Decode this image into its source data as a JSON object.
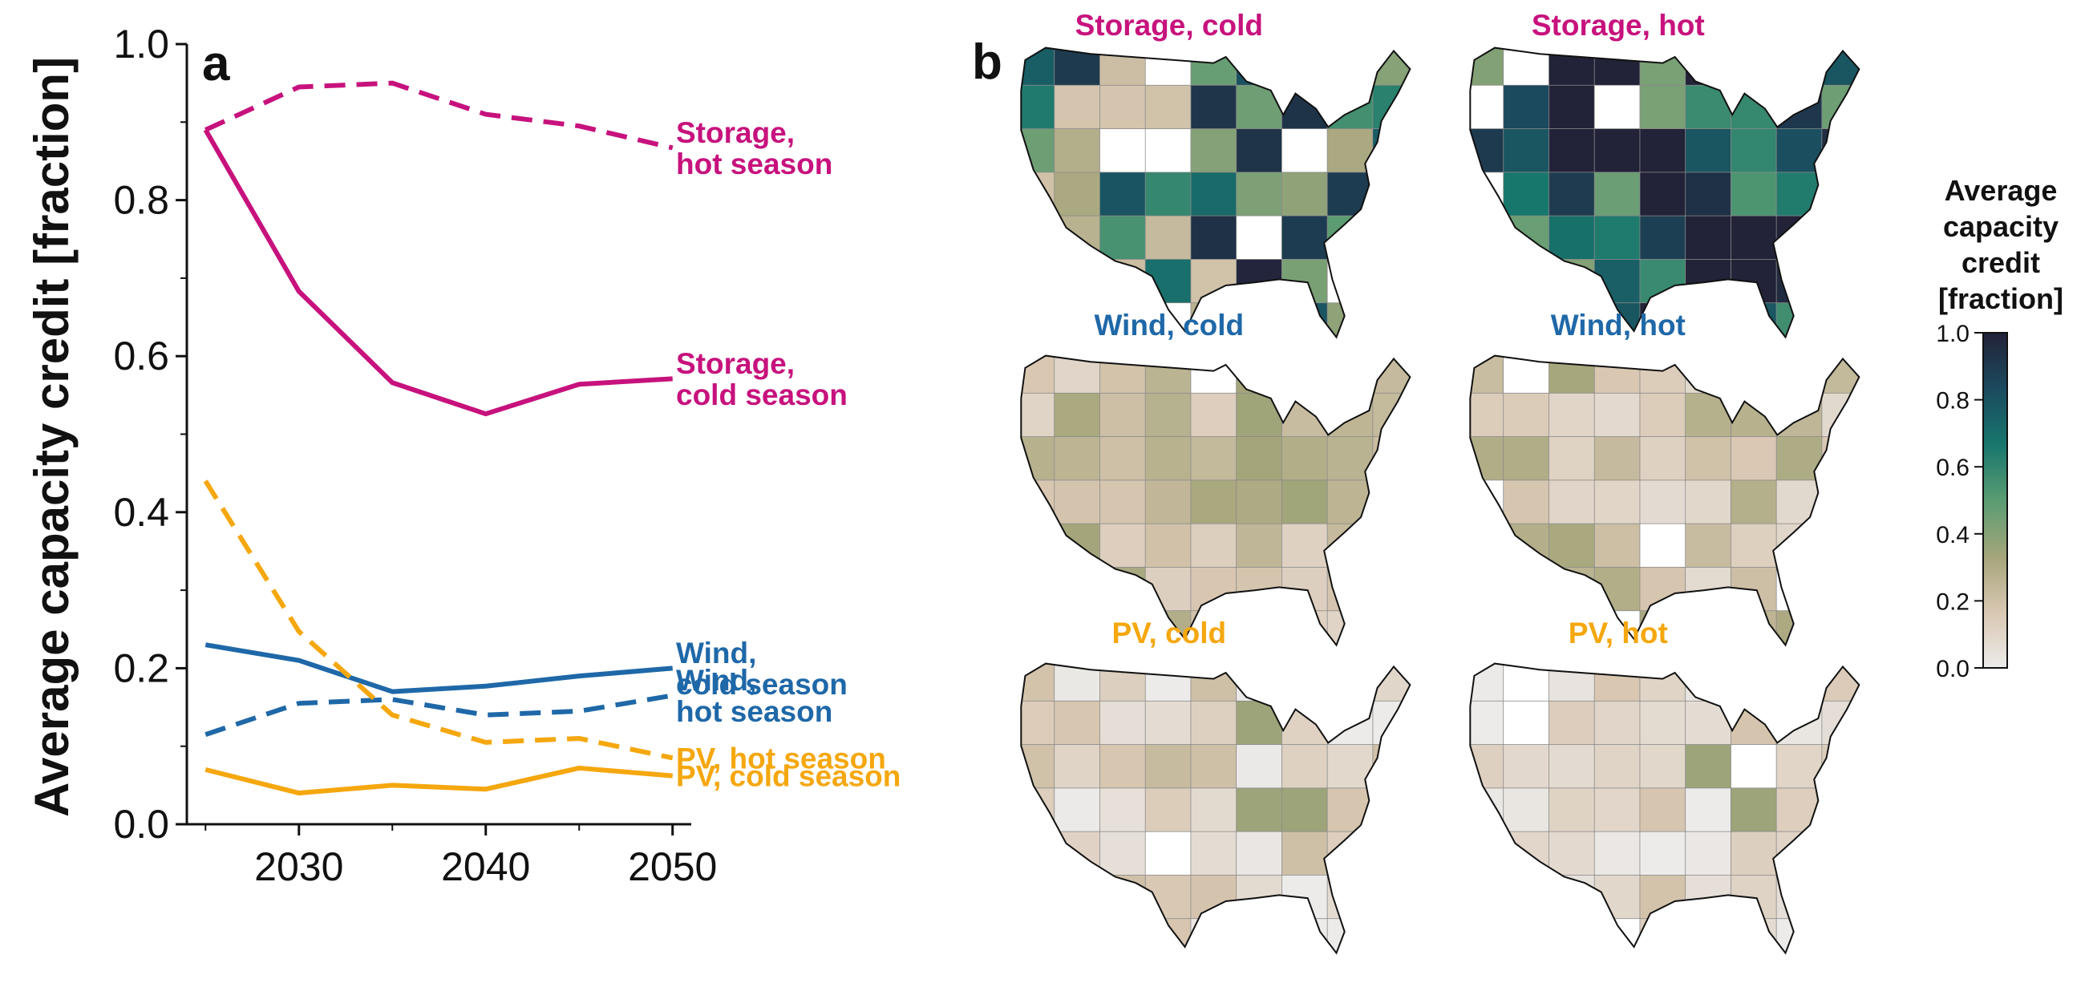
{
  "panel_a_letter": "a",
  "panel_b_letter": "b",
  "colors": {
    "storage": "#c7127d",
    "wind": "#1f68a8",
    "pv": "#f5a70e"
  },
  "chart_data": {
    "type": "line",
    "title": "",
    "xlabel": "",
    "ylabel": "Average capacity credit [fraction]",
    "xlim": [
      2024,
      2051
    ],
    "ylim": [
      0,
      1.0
    ],
    "x_ticks": [
      2030,
      2040,
      2050
    ],
    "x_tick_labels": [
      "2030",
      "2040",
      "2050"
    ],
    "y_ticks": [
      0.0,
      0.2,
      0.4,
      0.6,
      0.8,
      1.0
    ],
    "y_tick_labels": [
      "0.0",
      "0.2",
      "0.4",
      "0.6",
      "0.8",
      "1.0"
    ],
    "x": [
      2025,
      2030,
      2035,
      2040,
      2045,
      2050
    ],
    "series": [
      {
        "label_lines": [
          "Storage,",
          "hot season"
        ],
        "tech": "storage",
        "dash": true,
        "values": [
          0.89,
          0.945,
          0.95,
          0.91,
          0.895,
          0.867
        ]
      },
      {
        "label_lines": [
          "Storage,",
          "cold season"
        ],
        "tech": "storage",
        "dash": false,
        "values": [
          0.89,
          0.683,
          0.566,
          0.526,
          0.564,
          0.571
        ]
      },
      {
        "label_lines": [
          "Wind,",
          "cold season"
        ],
        "tech": "wind",
        "dash": false,
        "values": [
          0.23,
          0.21,
          0.17,
          0.177,
          0.19,
          0.2
        ]
      },
      {
        "label_lines": [
          "Wind,",
          "hot season"
        ],
        "tech": "wind",
        "dash": true,
        "values": [
          0.115,
          0.155,
          0.16,
          0.14,
          0.145,
          0.165
        ]
      },
      {
        "label_lines": [
          "PV, hot season"
        ],
        "tech": "pv",
        "dash": true,
        "values": [
          0.44,
          0.247,
          0.14,
          0.105,
          0.11,
          0.085
        ]
      },
      {
        "label_lines": [
          "PV, cold season"
        ],
        "tech": "pv",
        "dash": false,
        "values": [
          0.07,
          0.04,
          0.05,
          0.045,
          0.072,
          0.062
        ]
      }
    ]
  },
  "maps": [
    {
      "title": "Storage, cold",
      "tech": "storage",
      "season": "cold",
      "mean_value": 0.55
    },
    {
      "title": "Storage, hot",
      "tech": "storage",
      "season": "hot",
      "mean_value": 0.85
    },
    {
      "title": "Wind, cold",
      "tech": "wind",
      "season": "cold",
      "mean_value": 0.22
    },
    {
      "title": "Wind, hot",
      "tech": "wind",
      "season": "hot",
      "mean_value": 0.2
    },
    {
      "title": "PV, cold",
      "tech": "pv",
      "season": "cold",
      "mean_value": 0.1
    },
    {
      "title": "PV, hot",
      "tech": "pv",
      "season": "hot",
      "mean_value": 0.1
    }
  ],
  "colorbar": {
    "title_lines": [
      "Average",
      "capacity",
      "credit",
      "[fraction]"
    ],
    "ticks": [
      0.0,
      0.2,
      0.4,
      0.6,
      0.8,
      1.0
    ],
    "tick_labels": [
      "0.0",
      "0.2",
      "0.4",
      "0.6",
      "0.8",
      "1.0"
    ],
    "colormap": [
      "#ecebea",
      "#d9c7b2",
      "#a4a57a",
      "#5a9c72",
      "#17766d",
      "#1b4a5e",
      "#222238"
    ]
  }
}
